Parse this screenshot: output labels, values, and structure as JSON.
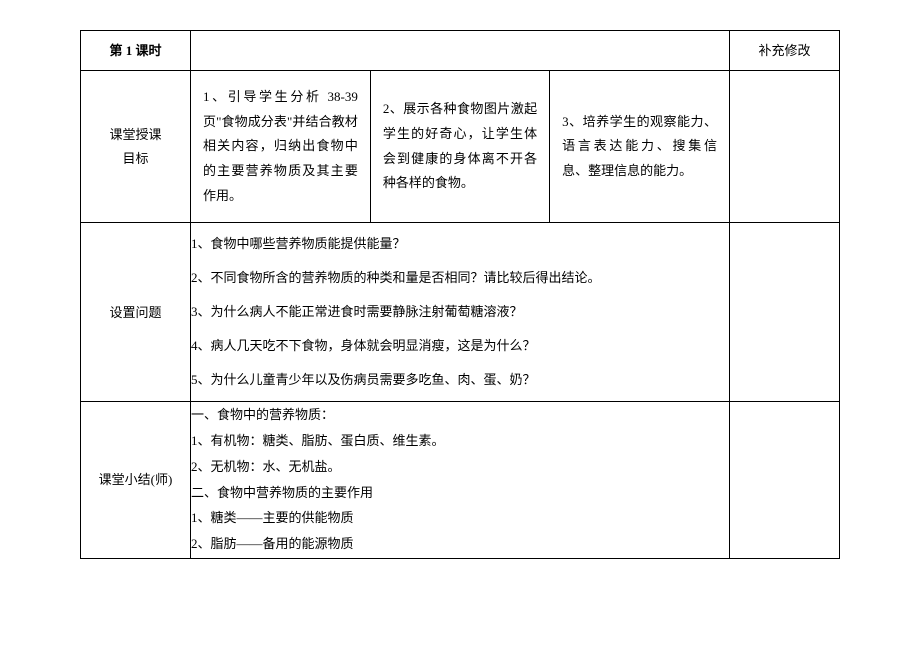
{
  "header": {
    "period_label": "第 1 课时",
    "supplement_label": "补充修改"
  },
  "row_goals": {
    "label_line1": "课堂授课",
    "label_line2": "目标",
    "g1": "1、引导学生分析 38-39 页\"食物成分表\"并结合教材相关内容，归纳出食物中的主要营养物质及其主要作用。",
    "g2": "2、展示各种食物图片激起学生的好奇心，让学生体会到健康的身体离不开各种各样的食物。",
    "g3": "3、培养学生的观察能力、语言表达能力、搜集信息、整理信息的能力。"
  },
  "row_questions": {
    "label": "设置问题",
    "q1": "1、食物中哪些营养物质能提供能量？",
    "q2": "2、不同食物所含的营养物质的种类和量是否相同？请比较后得出结论。",
    "q3": "3、为什么病人不能正常进食时需要静脉注射葡萄糖溶液？",
    "q4": "4、病人几天吃不下食物，身体就会明显消瘦，这是为什么？",
    "q5": "5、为什么儿童青少年以及伤病员需要多吃鱼、肉、蛋、奶？"
  },
  "row_summary": {
    "label": "课堂小结(师)",
    "s1": "一、食物中的营养物质：",
    "s2": "1、有机物：糖类、脂肪、蛋白质、维生素。",
    "s3": "2、无机物：水、无机盐。",
    "s4": "二、食物中营养物质的主要作用",
    "s5": "1、糖类——主要的供能物质",
    "s6": "2、脂肪——备用的能源物质"
  }
}
